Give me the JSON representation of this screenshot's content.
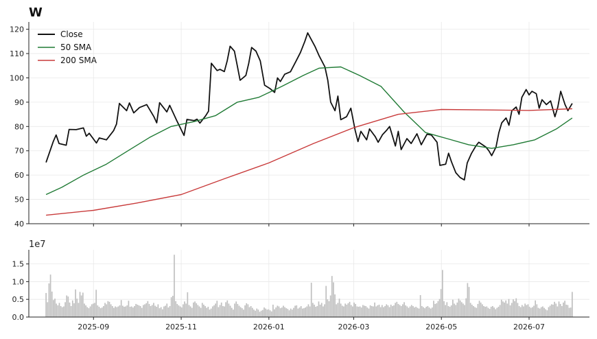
{
  "chart_data": {
    "title": "W",
    "type": "line",
    "date_range": [
      "2025-07-30",
      "2026-07-31"
    ],
    "legend": {
      "placement": "top-left",
      "entries": [
        "Close",
        "50 SMA",
        "200 SMA"
      ]
    },
    "price_panel": {
      "ylim": [
        40,
        123
      ],
      "yticks": [
        40,
        50,
        60,
        70,
        80,
        90,
        100,
        110,
        120
      ],
      "grid": true,
      "series": [
        {
          "name": "Close",
          "color": "#111111",
          "points": [
            [
              "2025-07-30",
              65.2
            ],
            [
              "2025-08-04",
              73.8
            ],
            [
              "2025-08-06",
              76.5
            ],
            [
              "2025-08-08",
              73.0
            ],
            [
              "2025-08-13",
              72.3
            ],
            [
              "2025-08-15",
              78.8
            ],
            [
              "2025-08-20",
              78.7
            ],
            [
              "2025-08-25",
              79.4
            ],
            [
              "2025-08-27",
              76.0
            ],
            [
              "2025-08-29",
              77.2
            ],
            [
              "2025-09-03",
              73.2
            ],
            [
              "2025-09-05",
              75.3
            ],
            [
              "2025-09-10",
              74.5
            ],
            [
              "2025-09-15",
              78.3
            ],
            [
              "2025-09-17",
              81.0
            ],
            [
              "2025-09-19",
              89.5
            ],
            [
              "2025-09-24",
              86.5
            ],
            [
              "2025-09-26",
              89.7
            ],
            [
              "2025-09-29",
              85.6
            ],
            [
              "2025-10-03",
              87.8
            ],
            [
              "2025-10-08",
              89.0
            ],
            [
              "2025-10-13",
              84.0
            ],
            [
              "2025-10-15",
              81.5
            ],
            [
              "2025-10-17",
              89.8
            ],
            [
              "2025-10-22",
              86.0
            ],
            [
              "2025-10-24",
              88.7
            ],
            [
              "2025-10-29",
              82.3
            ],
            [
              "2025-11-03",
              76.3
            ],
            [
              "2025-11-05",
              82.9
            ],
            [
              "2025-11-10",
              82.4
            ],
            [
              "2025-11-12",
              83.0
            ],
            [
              "2025-11-14",
              81.4
            ],
            [
              "2025-11-18",
              84.4
            ],
            [
              "2025-11-20",
              86.3
            ],
            [
              "2025-11-22",
              106.0
            ],
            [
              "2025-11-26",
              103.0
            ],
            [
              "2025-11-28",
              103.5
            ],
            [
              "2025-12-01",
              102.6
            ],
            [
              "2025-12-03",
              107.0
            ],
            [
              "2025-12-05",
              113.0
            ],
            [
              "2025-12-08",
              111.0
            ],
            [
              "2025-12-10",
              105.0
            ],
            [
              "2025-12-12",
              99.0
            ],
            [
              "2025-12-16",
              101.0
            ],
            [
              "2025-12-18",
              106.0
            ],
            [
              "2025-12-20",
              112.5
            ],
            [
              "2025-12-23",
              111.0
            ],
            [
              "2025-12-26",
              107.0
            ],
            [
              "2025-12-29",
              97.0
            ],
            [
              "2026-01-02",
              95.5
            ],
            [
              "2026-01-05",
              94.0
            ],
            [
              "2026-01-07",
              100.0
            ],
            [
              "2026-01-09",
              98.5
            ],
            [
              "2026-01-12",
              101.5
            ],
            [
              "2026-01-16",
              102.5
            ],
            [
              "2026-01-20",
              107.0
            ],
            [
              "2026-01-23",
              110.5
            ],
            [
              "2026-01-26",
              115.0
            ],
            [
              "2026-01-28",
              118.5
            ],
            [
              "2026-02-02",
              113.0
            ],
            [
              "2026-02-05",
              109.0
            ],
            [
              "2026-02-09",
              104.5
            ],
            [
              "2026-02-11",
              99.0
            ],
            [
              "2026-02-13",
              90.0
            ],
            [
              "2026-02-16",
              86.5
            ],
            [
              "2026-02-18",
              92.5
            ],
            [
              "2026-02-20",
              82.8
            ],
            [
              "2026-02-24",
              84.0
            ],
            [
              "2026-02-27",
              87.5
            ],
            [
              "2026-03-02",
              78.5
            ],
            [
              "2026-03-04",
              73.8
            ],
            [
              "2026-03-06",
              78.0
            ],
            [
              "2026-03-10",
              74.5
            ],
            [
              "2026-03-12",
              79.0
            ],
            [
              "2026-03-16",
              75.8
            ],
            [
              "2026-03-18",
              73.5
            ],
            [
              "2026-03-21",
              76.6
            ],
            [
              "2026-03-24",
              78.5
            ],
            [
              "2026-03-26",
              80.0
            ],
            [
              "2026-03-30",
              72.0
            ],
            [
              "2026-04-01",
              78.0
            ],
            [
              "2026-04-03",
              70.5
            ],
            [
              "2026-04-07",
              75.0
            ],
            [
              "2026-04-10",
              73.0
            ],
            [
              "2026-04-14",
              77.0
            ],
            [
              "2026-04-17",
              72.5
            ],
            [
              "2026-04-21",
              76.8
            ],
            [
              "2026-04-24",
              76.5
            ],
            [
              "2026-04-28",
              73.5
            ],
            [
              "2026-04-30",
              64.0
            ],
            [
              "2026-05-04",
              64.5
            ],
            [
              "2026-05-06",
              69.0
            ],
            [
              "2026-05-08",
              65.5
            ],
            [
              "2026-05-11",
              61.0
            ],
            [
              "2026-05-14",
              59.0
            ],
            [
              "2026-05-17",
              58.0
            ],
            [
              "2026-05-19",
              65.0
            ],
            [
              "2026-05-22",
              69.0
            ],
            [
              "2026-05-25",
              72.0
            ],
            [
              "2026-05-27",
              73.5
            ],
            [
              "2026-06-01",
              71.5
            ],
            [
              "2026-06-03",
              70.0
            ],
            [
              "2026-06-05",
              68.0
            ],
            [
              "2026-06-08",
              71.5
            ],
            [
              "2026-06-10",
              77.5
            ],
            [
              "2026-06-12",
              81.5
            ],
            [
              "2026-06-15",
              83.5
            ],
            [
              "2026-06-17",
              80.5
            ],
            [
              "2026-06-19",
              86.5
            ],
            [
              "2026-06-22",
              88.0
            ],
            [
              "2026-06-24",
              85.0
            ],
            [
              "2026-06-26",
              92.0
            ],
            [
              "2026-06-29",
              95.2
            ],
            [
              "2026-07-01",
              93.0
            ],
            [
              "2026-07-03",
              94.5
            ],
            [
              "2026-07-06",
              93.5
            ],
            [
              "2026-07-08",
              87.5
            ],
            [
              "2026-07-10",
              91.0
            ],
            [
              "2026-07-13",
              89.0
            ],
            [
              "2026-07-16",
              90.5
            ],
            [
              "2026-07-19",
              84.0
            ],
            [
              "2026-07-21",
              88.0
            ],
            [
              "2026-07-23",
              94.5
            ],
            [
              "2026-07-26",
              89.0
            ],
            [
              "2026-07-28",
              86.5
            ],
            [
              "2026-07-31",
              89.5
            ]
          ]
        },
        {
          "name": "50 SMA",
          "color": "#1f7a34",
          "points": [
            [
              "2025-07-30",
              52.0
            ],
            [
              "2025-08-10",
              55.0
            ],
            [
              "2025-08-25",
              60.0
            ],
            [
              "2025-09-10",
              64.5
            ],
            [
              "2025-09-25",
              70.0
            ],
            [
              "2025-10-10",
              75.5
            ],
            [
              "2025-10-25",
              80.0
            ],
            [
              "2025-11-10",
              82.0
            ],
            [
              "2025-11-25",
              84.5
            ],
            [
              "2025-12-10",
              90.0
            ],
            [
              "2025-12-25",
              92.0
            ],
            [
              "2026-01-10",
              96.5
            ],
            [
              "2026-01-25",
              101.0
            ],
            [
              "2026-02-05",
              104.0
            ],
            [
              "2026-02-20",
              104.5
            ],
            [
              "2026-03-05",
              101.0
            ],
            [
              "2026-03-20",
              96.5
            ],
            [
              "2026-04-05",
              86.0
            ],
            [
              "2026-04-20",
              77.5
            ],
            [
              "2026-05-05",
              75.0
            ],
            [
              "2026-05-20",
              72.5
            ],
            [
              "2026-06-05",
              71.0
            ],
            [
              "2026-06-20",
              72.5
            ],
            [
              "2026-07-05",
              74.5
            ],
            [
              "2026-07-20",
              79.0
            ],
            [
              "2026-07-31",
              83.5
            ]
          ]
        },
        {
          "name": "200 SMA",
          "color": "#c83a3a",
          "points": [
            [
              "2025-07-30",
              43.5
            ],
            [
              "2025-09-01",
              45.5
            ],
            [
              "2025-10-01",
              48.5
            ],
            [
              "2025-11-01",
              52.0
            ],
            [
              "2025-12-01",
              58.5
            ],
            [
              "2026-01-01",
              65.0
            ],
            [
              "2026-02-01",
              73.0
            ],
            [
              "2026-03-01",
              79.5
            ],
            [
              "2026-04-01",
              85.0
            ],
            [
              "2026-05-01",
              87.0
            ],
            [
              "2026-06-01",
              86.8
            ],
            [
              "2026-07-01",
              86.6
            ],
            [
              "2026-07-31",
              87.3
            ]
          ]
        }
      ]
    },
    "volume_panel": {
      "label": "1e7",
      "ylim": [
        0,
        1.9
      ],
      "yticks": [
        "0.0",
        "0.5",
        "1.0",
        "1.5"
      ],
      "grid": true,
      "bar_color": "#c0c0c0",
      "dates": [
        "2025-07-30",
        "2026-07-31"
      ],
      "values": [
        0.68,
        0.42,
        0.95,
        1.2,
        0.72,
        0.48,
        0.52,
        0.38,
        0.33,
        0.4,
        0.31,
        0.28,
        0.3,
        0.42,
        0.61,
        0.58,
        0.41,
        0.31,
        0.47,
        0.39,
        0.78,
        0.52,
        0.4,
        0.71,
        0.61,
        0.69,
        0.38,
        0.33,
        0.28,
        0.25,
        0.3,
        0.36,
        0.38,
        0.4,
        0.77,
        0.33,
        0.29,
        0.25,
        0.27,
        0.31,
        0.4,
        0.36,
        0.45,
        0.43,
        0.36,
        0.31,
        0.26,
        0.3,
        0.28,
        0.3,
        0.33,
        0.48,
        0.32,
        0.29,
        0.3,
        0.33,
        0.46,
        0.29,
        0.3,
        0.27,
        0.31,
        0.37,
        0.35,
        0.33,
        0.31,
        0.26,
        0.34,
        0.36,
        0.39,
        0.45,
        0.37,
        0.31,
        0.34,
        0.4,
        0.32,
        0.29,
        0.36,
        0.25,
        0.28,
        0.22,
        0.3,
        0.32,
        0.38,
        0.27,
        0.31,
        0.56,
        0.6,
        1.76,
        0.45,
        0.37,
        0.33,
        0.3,
        0.27,
        0.36,
        0.44,
        0.38,
        0.7,
        0.34,
        0.3,
        0.26,
        0.41,
        0.44,
        0.39,
        0.34,
        0.3,
        0.26,
        0.4,
        0.35,
        0.31,
        0.26,
        0.29,
        0.21,
        0.24,
        0.3,
        0.33,
        0.38,
        0.46,
        0.28,
        0.34,
        0.41,
        0.31,
        0.3,
        0.42,
        0.47,
        0.38,
        0.32,
        0.26,
        0.21,
        0.38,
        0.44,
        0.37,
        0.32,
        0.28,
        0.25,
        0.21,
        0.33,
        0.39,
        0.36,
        0.28,
        0.31,
        0.26,
        0.21,
        0.18,
        0.24,
        0.21,
        0.15,
        0.18,
        0.2,
        0.27,
        0.24,
        0.21,
        0.22,
        0.19,
        0.16,
        0.35,
        0.22,
        0.27,
        0.32,
        0.3,
        0.25,
        0.27,
        0.32,
        0.28,
        0.25,
        0.23,
        0.19,
        0.24,
        0.21,
        0.26,
        0.32,
        0.33,
        0.24,
        0.27,
        0.31,
        0.24,
        0.25,
        0.27,
        0.3,
        0.36,
        0.3,
        0.97,
        0.4,
        0.35,
        0.29,
        0.31,
        0.44,
        0.35,
        0.4,
        0.3,
        0.36,
        0.88,
        0.5,
        0.45,
        0.61,
        1.16,
        0.98,
        0.64,
        0.36,
        0.4,
        0.52,
        0.38,
        0.32,
        0.3,
        0.38,
        0.35,
        0.39,
        0.43,
        0.34,
        0.3,
        0.41,
        0.37,
        0.3,
        0.29,
        0.3,
        0.27,
        0.34,
        0.32,
        0.31,
        0.27,
        0.24,
        0.33,
        0.31,
        0.3,
        0.41,
        0.3,
        0.33,
        0.35,
        0.28,
        0.34,
        0.28,
        0.31,
        0.36,
        0.33,
        0.28,
        0.35,
        0.31,
        0.33,
        0.4,
        0.43,
        0.37,
        0.34,
        0.31,
        0.36,
        0.42,
        0.33,
        0.3,
        0.26,
        0.3,
        0.34,
        0.31,
        0.27,
        0.29,
        0.26,
        0.24,
        0.62,
        0.31,
        0.28,
        0.25,
        0.29,
        0.31,
        0.27,
        0.24,
        0.27,
        0.46,
        0.37,
        0.39,
        0.45,
        0.51,
        0.79,
        1.33,
        0.45,
        0.34,
        0.42,
        0.31,
        0.29,
        0.33,
        0.49,
        0.38,
        0.34,
        0.41,
        0.52,
        0.47,
        0.42,
        0.38,
        0.34,
        0.53,
        0.96,
        0.85,
        0.4,
        0.35,
        0.31,
        0.28,
        0.26,
        0.37,
        0.46,
        0.41,
        0.36,
        0.31,
        0.29,
        0.3,
        0.26,
        0.23,
        0.29,
        0.31,
        0.27,
        0.22,
        0.26,
        0.29,
        0.34,
        0.49,
        0.44,
        0.41,
        0.47,
        0.38,
        0.51,
        0.33,
        0.4,
        0.5,
        0.45,
        0.53,
        0.4,
        0.31,
        0.28,
        0.34,
        0.3,
        0.38,
        0.34,
        0.36,
        0.29,
        0.26,
        0.28,
        0.32,
        0.47,
        0.36,
        0.26,
        0.24,
        0.28,
        0.3,
        0.26,
        0.22,
        0.19,
        0.28,
        0.32,
        0.36,
        0.35,
        0.43,
        0.38,
        0.3,
        0.44,
        0.37,
        0.31,
        0.41,
        0.46,
        0.35,
        0.34,
        0.26,
        0.27,
        0.71
      ]
    },
    "x_ticks": [
      {
        "date": "2025-09-01",
        "label": "2025-09"
      },
      {
        "date": "2025-11-01",
        "label": "2025-11"
      },
      {
        "date": "2026-01-01",
        "label": "2026-01"
      },
      {
        "date": "2026-03-01",
        "label": "2026-03"
      },
      {
        "date": "2026-05-01",
        "label": "2026-05"
      },
      {
        "date": "2026-07-01",
        "label": "2026-07"
      }
    ]
  }
}
